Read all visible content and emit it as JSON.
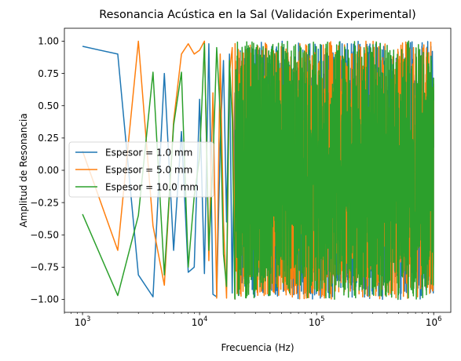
{
  "chart_data": {
    "type": "line",
    "title": "Resonancia Acústica en la Sal (Validación Experimental)",
    "xlabel": "Frecuencia (Hz)",
    "ylabel": "Amplitud de Resonancia",
    "xscale": "log",
    "xlim": [
      700,
      1400000
    ],
    "ylim": [
      -1.1,
      1.1
    ],
    "xticks": [
      {
        "value": 1000,
        "base": "10",
        "exp": "3"
      },
      {
        "value": 10000,
        "base": "10",
        "exp": "4"
      },
      {
        "value": 100000,
        "base": "10",
        "exp": "5"
      },
      {
        "value": 1000000,
        "base": "10",
        "exp": "6"
      }
    ],
    "yticks": [
      {
        "value": 1.0,
        "label": "1.00"
      },
      {
        "value": 0.75,
        "label": "0.75"
      },
      {
        "value": 0.5,
        "label": "0.50"
      },
      {
        "value": 0.25,
        "label": "0.25"
      },
      {
        "value": 0.0,
        "label": "0.00"
      },
      {
        "value": -0.25,
        "label": "−0.25"
      },
      {
        "value": -0.5,
        "label": "−0.50"
      },
      {
        "value": -0.75,
        "label": "−0.75"
      },
      {
        "value": -1.0,
        "label": "−1.00"
      }
    ],
    "grid": false,
    "legend_position": "center-left",
    "series": [
      {
        "name": "Espesor = 1.0 mm",
        "color": "#1f77b4",
        "x": [
          1000,
          2000,
          3000,
          4000,
          5000,
          6000,
          7000,
          8000,
          9000,
          10000,
          11000,
          12000,
          13000,
          14000,
          15000,
          16000,
          17000,
          18000,
          19000,
          20000
        ],
        "y": [
          0.96,
          0.9,
          -0.81,
          -0.98,
          0.75,
          -0.62,
          0.3,
          -0.79,
          -0.75,
          0.55,
          -0.8,
          0.98,
          -0.96,
          -0.98,
          0.2,
          0.85,
          -0.4,
          0.9,
          -0.95,
          0.6
        ]
      },
      {
        "name": "Espesor = 5.0 mm",
        "color": "#ff7f0e",
        "x": [
          1000,
          2000,
          3000,
          4000,
          5000,
          6000,
          7000,
          8000,
          9000,
          10000,
          11000,
          12000,
          13000,
          14000,
          15000,
          16000,
          17000,
          18000,
          19000,
          20000
        ],
        "y": [
          0.15,
          -0.62,
          1.0,
          -0.43,
          -0.89,
          0.38,
          0.9,
          0.98,
          0.9,
          0.93,
          1.0,
          -0.7,
          0.6,
          -0.99,
          0.9,
          -0.4,
          -0.99,
          0.75,
          0.95,
          -0.85
        ]
      },
      {
        "name": "Espesor = 10.0 mm",
        "color": "#2ca02c",
        "x": [
          1000,
          2000,
          3000,
          4000,
          5000,
          6000,
          7000,
          8000,
          9000,
          10000,
          11000,
          12000,
          13000,
          14000,
          15000,
          16000,
          17000,
          18000,
          19000,
          20000
        ],
        "y": [
          -0.34,
          -0.97,
          -0.35,
          0.76,
          -0.81,
          0.35,
          0.76,
          -0.75,
          -0.2,
          0.1,
          0.98,
          -0.62,
          0.05,
          0.95,
          0.45,
          -0.65,
          -0.9,
          0.85,
          0.4,
          -0.99
        ]
      }
    ],
    "dense_region": {
      "x_start": 20000,
      "x_end": 1000000,
      "y_range": [
        -1.0,
        1.0
      ]
    }
  }
}
